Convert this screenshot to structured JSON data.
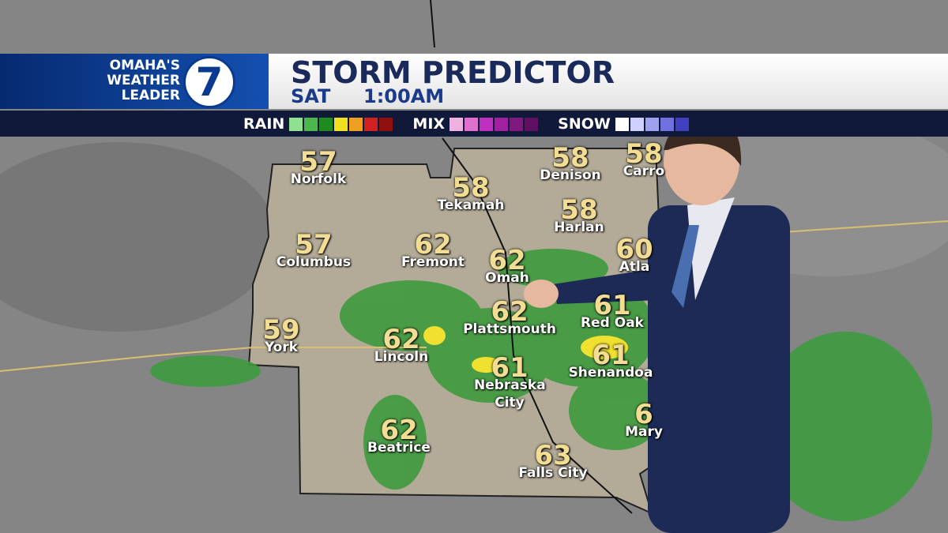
{
  "header": {
    "logo": {
      "line1": "OMAHA'S",
      "line2": "WEATHER",
      "line3": "LEADER",
      "channel": "7"
    },
    "title": "STORM PREDICTOR",
    "day": "SAT",
    "time": "1:00AM"
  },
  "legend": {
    "rain": "RAIN",
    "mix": "MIX",
    "snow": "SNOW"
  },
  "cities": [
    {
      "temp": 57,
      "name": "Norfolk"
    },
    {
      "temp": 58,
      "name": "Tekamah"
    },
    {
      "temp": 58,
      "name": "Denison"
    },
    {
      "temp": 58,
      "name": "Carro"
    },
    {
      "temp": 58,
      "name": "Harlan"
    },
    {
      "temp": 57,
      "name": "Columbus"
    },
    {
      "temp": 62,
      "name": "Fremont"
    },
    {
      "temp": 62,
      "name": "Omah"
    },
    {
      "temp": 60,
      "name": "Atla"
    },
    {
      "temp": 62,
      "name": "Plattsmouth"
    },
    {
      "temp": 61,
      "name": "Red Oak"
    },
    {
      "temp": 59,
      "name": "York"
    },
    {
      "temp": 62,
      "name": "Lincoln"
    },
    {
      "temp": 61,
      "name": "Shenandoa"
    },
    {
      "temp": 61,
      "name": "Nebraska City"
    },
    {
      "temp": 6,
      "name": "Mary"
    },
    {
      "temp": 62,
      "name": "Beatrice"
    },
    {
      "temp": 63,
      "name": "Falls City"
    }
  ]
}
